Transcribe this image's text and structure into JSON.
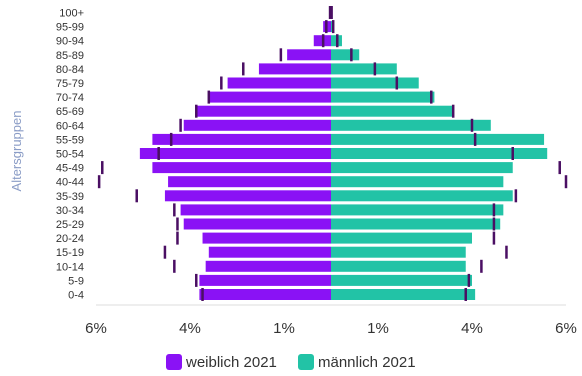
{
  "chart_data": {
    "type": "bar",
    "orientation": "horizontal",
    "layout": "population-pyramid",
    "title": "",
    "ylabel": "Altersgruppen",
    "xlabel": "",
    "categories": [
      "100+",
      "95-99",
      "90-94",
      "85-89",
      "80-84",
      "75-79",
      "70-74",
      "65-69",
      "60-64",
      "55-59",
      "50-54",
      "45-49",
      "40-44",
      "35-39",
      "30-34",
      "25-29",
      "20-24",
      "15-19",
      "10-14",
      "5-9",
      "0-4"
    ],
    "x_tick_labels": [
      "6%",
      "4%",
      "1%",
      "1%",
      "4%",
      "6%"
    ],
    "x_range_each_side": [
      0,
      5
    ],
    "grid": false,
    "legend_position": "bottom",
    "series": [
      {
        "name": "weiblich 2021",
        "side": "left",
        "color": "#8a12f5",
        "values": [
          0.03,
          0.25,
          0.55,
          1.4,
          2.3,
          3.3,
          3.9,
          4.3,
          4.7,
          5.7,
          6.1,
          5.7,
          5.2,
          5.3,
          4.8,
          4.7,
          4.1,
          3.9,
          4.0,
          4.2,
          4.2
        ],
        "markers": [
          0.03,
          0.15,
          0.25,
          1.6,
          2.8,
          3.5,
          3.9,
          4.3,
          4.8,
          5.1,
          5.5,
          7.3,
          7.4,
          6.2,
          5.0,
          4.9,
          4.9,
          5.3,
          5.0,
          4.3,
          4.1
        ]
      },
      {
        "name": "männlich 2021",
        "side": "right",
        "color": "#22c3a6",
        "values": [
          0.02,
          0.1,
          0.35,
          0.9,
          2.1,
          2.8,
          3.3,
          3.9,
          5.1,
          6.8,
          6.9,
          5.8,
          5.5,
          5.8,
          5.5,
          5.4,
          4.5,
          4.3,
          4.3,
          4.5,
          4.6
        ],
        "markers": [
          0.02,
          0.07,
          0.2,
          0.65,
          1.4,
          2.1,
          3.2,
          3.9,
          4.5,
          4.6,
          5.8,
          7.3,
          7.5,
          5.9,
          5.2,
          5.2,
          5.2,
          5.6,
          4.8,
          4.4,
          4.3
        ]
      }
    ]
  }
}
